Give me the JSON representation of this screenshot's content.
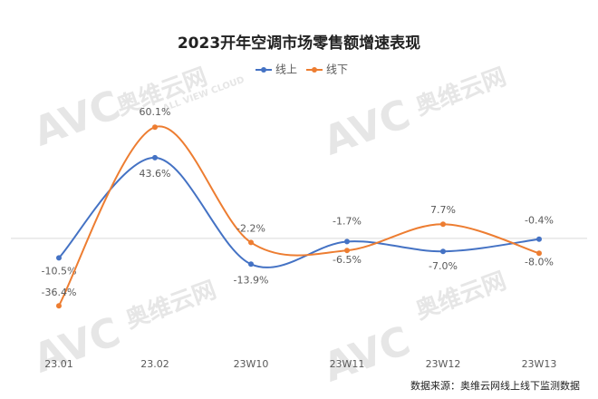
{
  "chart_data": {
    "type": "line",
    "title": "2023开年空调市场零售额增速表现",
    "categories": [
      "23.01",
      "23.02",
      "23W10",
      "23W11",
      "23W12",
      "23W13"
    ],
    "series": [
      {
        "name": "线上",
        "color": "#4472c4",
        "values": [
          -10.5,
          43.6,
          -13.9,
          -1.7,
          -7.0,
          -0.4
        ],
        "value_labels": [
          "-10.5%",
          "43.6%",
          "-13.9%",
          "-1.7%",
          "-7.0%",
          "-0.4%"
        ]
      },
      {
        "name": "线下",
        "color": "#ed7d31",
        "values": [
          -36.4,
          60.1,
          -2.2,
          -6.5,
          7.7,
          -8.0
        ],
        "value_labels": [
          "-36.4%",
          "60.1%",
          "-2.2%",
          "-6.5%",
          "7.7%",
          "-8.0%"
        ]
      }
    ],
    "ylim": [
      -50,
      70
    ],
    "smooth": true,
    "legend": "top",
    "source": "数据来源：奥维云网线上线下监测数据",
    "watermark": {
      "logo": "AVC",
      "name": "奥维云网",
      "english": "ALL VIEW CLOUD"
    }
  }
}
